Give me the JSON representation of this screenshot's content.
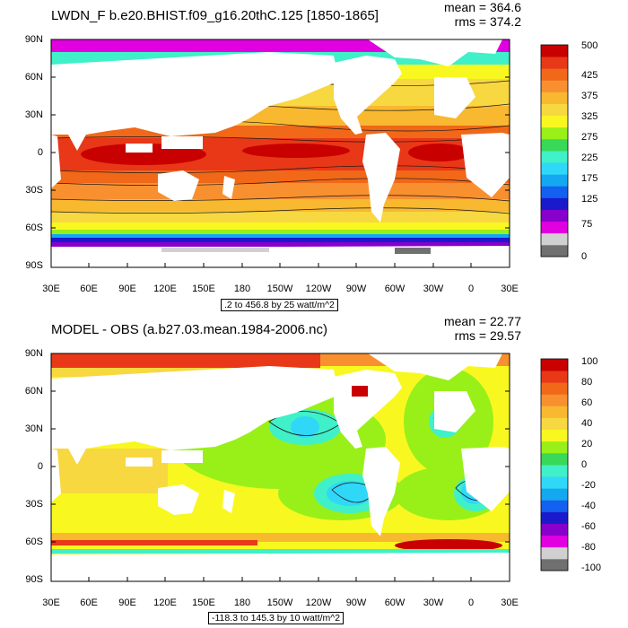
{
  "colors": {
    "levels": [
      "#707070",
      "#d0d0d0",
      "#e000e0",
      "#8800cc",
      "#1a1acc",
      "#1460f0",
      "#14a8f0",
      "#30d8f8",
      "#40f0c8",
      "#38d858",
      "#98f018",
      "#f8f820",
      "#f8d840",
      "#f8b830",
      "#f89030",
      "#f06818",
      "#e83818",
      "#c80000"
    ],
    "land": "#ffffff",
    "contour": "#1a1a1a"
  },
  "panels": [
    {
      "title": "LWDN_F b.e20.BHIST.f09_g16.20thC.125 [1850-1865]",
      "mean": "mean = 364.6",
      "rms": "rms = 374.2",
      "subtitle": ".2 to 456.8 by 25 watt/m^2",
      "lat_ticks": [
        "90N",
        "60N",
        "30N",
        "0",
        "30S",
        "60S",
        "90S"
      ],
      "lon_ticks": [
        "30E",
        "60E",
        "90E",
        "120E",
        "150E",
        "180",
        "150W",
        "120W",
        "90W",
        "60W",
        "30W",
        "0",
        "30E"
      ],
      "colorbar_labels": [
        "500",
        "425",
        "375",
        "325",
        "275",
        "225",
        "175",
        "125",
        "75",
        "0"
      ]
    },
    {
      "title": "MODEL - OBS (a.b27.03.mean.1984-2006.nc)",
      "mean": "mean = 22.77",
      "rms": "rms = 29.57",
      "subtitle": "-118.3 to 145.3 by 10 watt/m^2",
      "lat_ticks": [
        "90N",
        "60N",
        "30N",
        "0",
        "30S",
        "60S",
        "90S"
      ],
      "lon_ticks": [
        "30E",
        "60E",
        "90E",
        "120E",
        "150E",
        "180",
        "150W",
        "120W",
        "90W",
        "60W",
        "30W",
        "0",
        "30E"
      ],
      "colorbar_labels": [
        "100",
        "80",
        "60",
        "40",
        "20",
        "0",
        "-20",
        "-40",
        "-60",
        "-80",
        "-100"
      ]
    }
  ]
}
